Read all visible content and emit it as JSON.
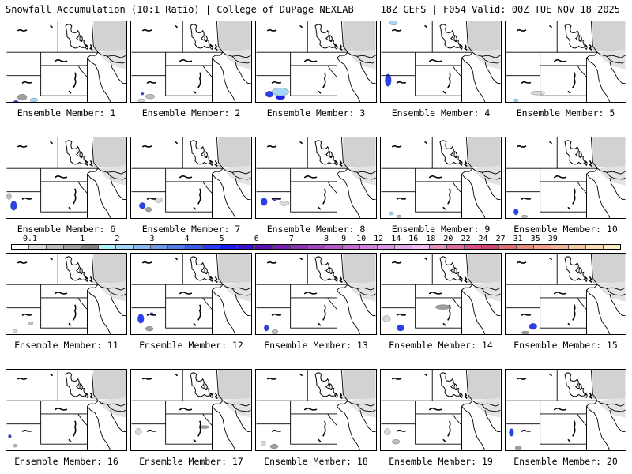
{
  "header": {
    "left": "Snowfall Accumulation (10:1 Ratio) | College of DuPage NEXLAB",
    "right": "18Z GEFS | F054 Valid: 00Z TUE NOV 18 2025"
  },
  "label_prefix": "Ensemble Member: ",
  "members": [
    {
      "number": "1",
      "label": "Ensemble Member: 1"
    },
    {
      "number": "2",
      "label": "Ensemble Member: 2"
    },
    {
      "number": "3",
      "label": "Ensemble Member: 3"
    },
    {
      "number": "4",
      "label": "Ensemble Member: 4"
    },
    {
      "number": "5",
      "label": "Ensemble Member: 5"
    },
    {
      "number": "6",
      "label": "Ensemble Member: 6"
    },
    {
      "number": "7",
      "label": "Ensemble Member: 7"
    },
    {
      "number": "8",
      "label": "Ensemble Member: 8"
    },
    {
      "number": "9",
      "label": "Ensemble Member: 9"
    },
    {
      "number": "10",
      "label": "Ensemble Member: 10"
    },
    {
      "number": "11",
      "label": "Ensemble Member: 11"
    },
    {
      "number": "12",
      "label": "Ensemble Member: 12"
    },
    {
      "number": "13",
      "label": "Ensemble Member: 13"
    },
    {
      "number": "14",
      "label": "Ensemble Member: 14"
    },
    {
      "number": "15",
      "label": "Ensemble Member: 15"
    },
    {
      "number": "16",
      "label": "Ensemble Member: 16"
    },
    {
      "number": "17",
      "label": "Ensemble Member: 17"
    },
    {
      "number": "18",
      "label": "Ensemble Member: 18"
    },
    {
      "number": "19",
      "label": "Ensemble Member: 19"
    },
    {
      "number": "20",
      "label": "Ensemble Member: 20"
    }
  ],
  "colorbar": {
    "ticks": [
      "0.1",
      "1",
      "2",
      "3",
      "4",
      "5",
      "6",
      "7",
      "8",
      "9",
      "10",
      "12",
      "14",
      "16",
      "18",
      "20",
      "22",
      "24",
      "27",
      "31",
      "35",
      "39"
    ],
    "colors": [
      "#ffffff",
      "#d9d9d9",
      "#bdbdbd",
      "#9e9e9e",
      "#808080",
      "#aef3f3",
      "#a6d6f5",
      "#8ab8f0",
      "#6e9ae8",
      "#527ce6",
      "#3a5ee8",
      "#2a3ff0",
      "#1e1ef5",
      "#3c14c8",
      "#5a14b4",
      "#7820b4",
      "#8c32b4",
      "#a046be",
      "#b45ac8",
      "#c86ed2",
      "#d282dc",
      "#dc96e6",
      "#e6aaf0",
      "#f0bef0",
      "#e691b9",
      "#e06ea0",
      "#d8508c",
      "#d04678",
      "#e06e78",
      "#e88c82",
      "#f0a08c",
      "#f0b496",
      "#f4c8a0",
      "#f8dcb4",
      "#fcecc8"
    ],
    "tick_bin_index": [
      1,
      4,
      6,
      8,
      10,
      12,
      14,
      16,
      18,
      19,
      20,
      21,
      22,
      23,
      24,
      25,
      26,
      27,
      28,
      29,
      30,
      31
    ]
  }
}
